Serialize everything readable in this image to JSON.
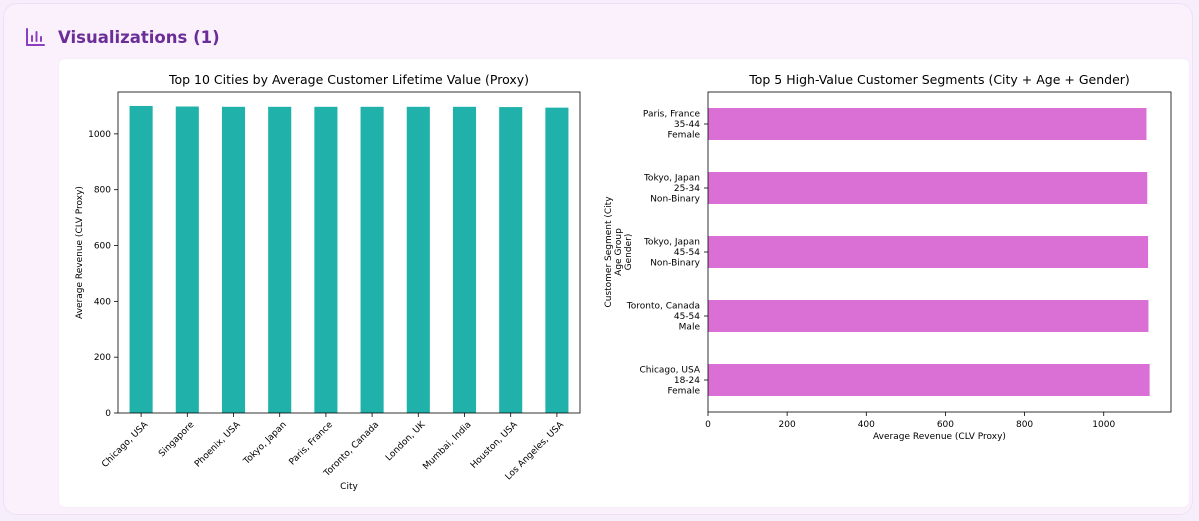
{
  "section": {
    "title": "Visualizations (1)",
    "icon": "bar-chart-icon",
    "accent_color": "#6b2d97"
  },
  "chart_data": [
    {
      "type": "bar",
      "orientation": "vertical",
      "title": "Top 10 Cities by Average Customer Lifetime Value (Proxy)",
      "xlabel": "City",
      "ylabel": "Average Revenue (CLV Proxy)",
      "categories": [
        "Chicago, USA",
        "Singapore",
        "Phoenix, USA",
        "Tokyo, Japan",
        "Paris, France",
        "Toronto, Canada",
        "London, UK",
        "Mumbai, India",
        "Houston, USA",
        "Los Angeles, USA"
      ],
      "values": [
        1100,
        1098,
        1097,
        1097,
        1097,
        1097,
        1097,
        1097,
        1096,
        1094
      ],
      "ylim": [
        0,
        1150
      ],
      "yticks": [
        0,
        200,
        400,
        600,
        800,
        1000
      ],
      "color": "#20b2aa",
      "grid": false
    },
    {
      "type": "bar",
      "orientation": "horizontal",
      "title": "Top 5 High-Value Customer Segments (City + Age + Gender)",
      "xlabel": "Average Revenue (CLV Proxy)",
      "ylabel": [
        "Customer Segment (City",
        "Age Group",
        "Gender)"
      ],
      "categories": [
        [
          "Paris, France",
          "35-44",
          "Female"
        ],
        [
          "Tokyo, Japan",
          "25-34",
          "Non-Binary"
        ],
        [
          "Tokyo, Japan",
          "45-54",
          "Non-Binary"
        ],
        [
          "Toronto, Canada",
          "45-54",
          "Male"
        ],
        [
          "Chicago, USA",
          "18-24",
          "Female"
        ]
      ],
      "values": [
        1108,
        1110,
        1112,
        1113,
        1116
      ],
      "xlim": [
        0,
        1170
      ],
      "xticks": [
        0,
        200,
        400,
        600,
        800,
        1000
      ],
      "color": "#da70d6",
      "grid": false
    }
  ]
}
